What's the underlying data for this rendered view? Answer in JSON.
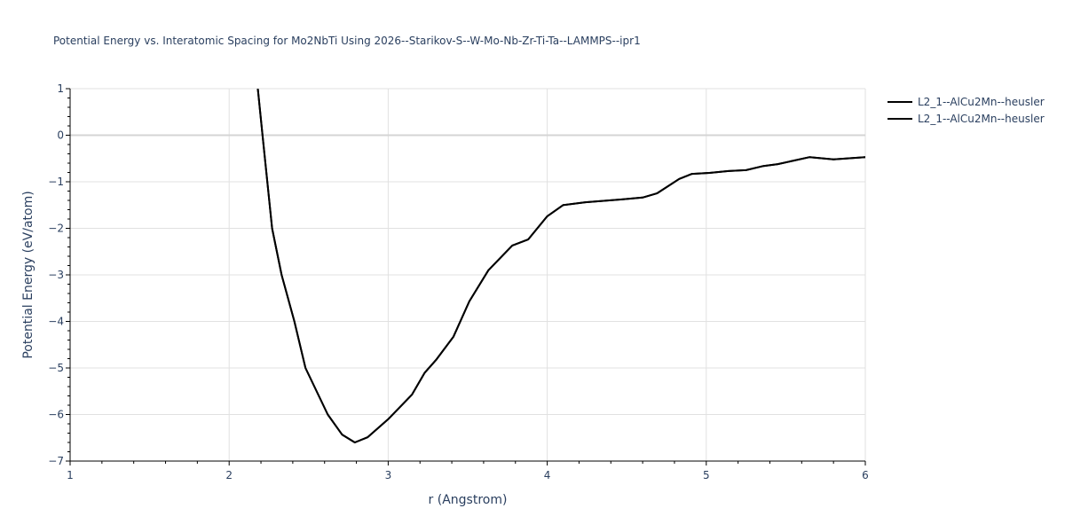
{
  "chart_data": {
    "type": "line",
    "title": "Potential Energy vs. Interatomic Spacing for Mo2NbTi Using 2026--Starikov-S--W-Mo-Nb-Zr-Ti-Ta--LAMMPS--ipr1",
    "xlabel": "r (Angstrom)",
    "ylabel": "Potential Energy (eV/atom)",
    "xlim": [
      1,
      6
    ],
    "ylim": [
      -7,
      1
    ],
    "xticks": [
      1,
      2,
      3,
      4,
      5,
      6
    ],
    "yticks": [
      1,
      0,
      -1,
      -2,
      -3,
      -4,
      -5,
      -6,
      -7
    ],
    "ytick_labels": [
      "1",
      "0",
      "−1",
      "−2",
      "−3",
      "−4",
      "−5",
      "−6",
      "−7"
    ],
    "grid": true,
    "legend_position": "top-right-outside",
    "series": [
      {
        "name": "L2_1--AlCu2Mn--heusler",
        "color": "#000000",
        "x": [
          2.18,
          2.21,
          2.24,
          2.27,
          2.33,
          2.41,
          2.48,
          2.62,
          2.71,
          2.79,
          2.87,
          3.0,
          3.15,
          3.23,
          3.3,
          3.41,
          3.51,
          3.63,
          3.78,
          3.88,
          4.0,
          4.1,
          4.24,
          4.47,
          4.6,
          4.69,
          4.83,
          4.91,
          5.02,
          5.14,
          5.25,
          5.36,
          5.45,
          5.65,
          5.8,
          6.0
        ],
        "y": [
          1.0,
          0.0,
          -1.0,
          -2.0,
          -3.0,
          -4.0,
          -5.0,
          -6.0,
          -6.43,
          -6.6,
          -6.49,
          -6.1,
          -5.57,
          -5.1,
          -4.83,
          -4.33,
          -3.57,
          -2.9,
          -2.37,
          -2.24,
          -1.74,
          -1.5,
          -1.44,
          -1.38,
          -1.34,
          -1.25,
          -0.94,
          -0.83,
          -0.81,
          -0.77,
          -0.75,
          -0.66,
          -0.62,
          -0.47,
          -0.52,
          -0.47
        ]
      },
      {
        "name": "L2_1--AlCu2Mn--heusler",
        "color": "#000000",
        "x": [
          2.18,
          2.21,
          2.24,
          2.27,
          2.33,
          2.41,
          2.48,
          2.62,
          2.71,
          2.79,
          2.87,
          3.0,
          3.15,
          3.23,
          3.3,
          3.41,
          3.51,
          3.63,
          3.78,
          3.88,
          4.0,
          4.1,
          4.24,
          4.47,
          4.6,
          4.69,
          4.83,
          4.91,
          5.02,
          5.14,
          5.25,
          5.36,
          5.45,
          5.65,
          5.8,
          6.0
        ],
        "y": [
          1.0,
          0.0,
          -1.0,
          -2.0,
          -3.0,
          -4.0,
          -5.0,
          -6.0,
          -6.43,
          -6.6,
          -6.49,
          -6.1,
          -5.57,
          -5.1,
          -4.83,
          -4.33,
          -3.57,
          -2.9,
          -2.37,
          -2.24,
          -1.74,
          -1.5,
          -1.44,
          -1.38,
          -1.34,
          -1.25,
          -0.94,
          -0.83,
          -0.81,
          -0.77,
          -0.75,
          -0.66,
          -0.62,
          -0.47,
          -0.52,
          -0.47
        ]
      }
    ]
  },
  "colors": {
    "text": "#2a3f5f",
    "grid": "#e1e1e1",
    "zeroline": "#d4d4d4",
    "axis": "#000000",
    "background": "#ffffff"
  }
}
